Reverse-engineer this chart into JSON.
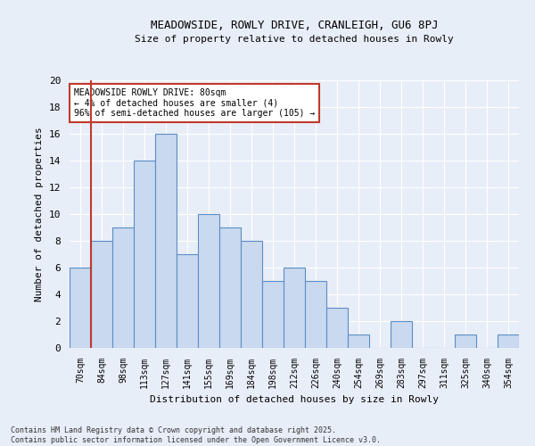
{
  "title1": "MEADOWSIDE, ROWLY DRIVE, CRANLEIGH, GU6 8PJ",
  "title2": "Size of property relative to detached houses in Rowly",
  "xlabel": "Distribution of detached houses by size in Rowly",
  "ylabel": "Number of detached properties",
  "bin_labels": [
    "70sqm",
    "84sqm",
    "98sqm",
    "113sqm",
    "127sqm",
    "141sqm",
    "155sqm",
    "169sqm",
    "184sqm",
    "198sqm",
    "212sqm",
    "226sqm",
    "240sqm",
    "254sqm",
    "269sqm",
    "283sqm",
    "297sqm",
    "311sqm",
    "325sqm",
    "340sqm",
    "354sqm"
  ],
  "counts": [
    6,
    8,
    9,
    14,
    16,
    7,
    10,
    9,
    8,
    5,
    6,
    5,
    3,
    1,
    0,
    2,
    0,
    0,
    1,
    0,
    1
  ],
  "bar_color": "#c9d9f0",
  "bar_edge_color": "#5b8ec4",
  "vline_color": "#c0392b",
  "annotation_title": "MEADOWSIDE ROWLY DRIVE: 80sqm",
  "annotation_line1": "← 4% of detached houses are smaller (4)",
  "annotation_line2": "96% of semi-detached houses are larger (105) →",
  "annotation_box_color": "#c0392b",
  "footer1": "Contains HM Land Registry data © Crown copyright and database right 2025.",
  "footer2": "Contains public sector information licensed under the Open Government Licence v3.0.",
  "background_color": "#e8eef8",
  "ylim": [
    0,
    20
  ],
  "yticks": [
    0,
    2,
    4,
    6,
    8,
    10,
    12,
    14,
    16,
    18,
    20
  ]
}
